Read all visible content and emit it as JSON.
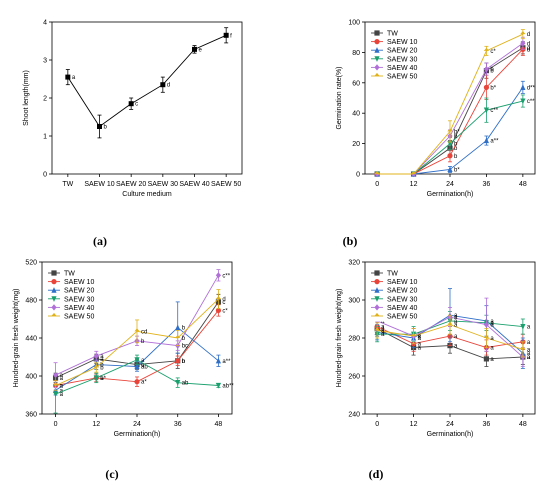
{
  "colors": {
    "TW": "#444444",
    "SAEW 10": "#e8443a",
    "SAEW 20": "#2f6fc8",
    "SAEW 30": "#1aa06e",
    "SAEW 40": "#b070d8",
    "SAEW 50": "#e0b21a",
    "axis": "#000000"
  },
  "chart_data": [
    {
      "panel": "(a)",
      "type": "line",
      "xlabel": "Culture medium",
      "ylabel": "Shoot length(mm)",
      "categories": [
        "TW",
        "SAEW 10",
        "SAEW 20",
        "SAEW 30",
        "SAEW 40",
        "SAEW 50"
      ],
      "ylim": [
        0,
        4
      ],
      "yticks": [
        0,
        1,
        2,
        3,
        4
      ],
      "series": [
        {
          "values": [
            2.55,
            1.25,
            1.85,
            2.35,
            3.28,
            3.65
          ],
          "errors": [
            0.2,
            0.3,
            0.15,
            0.2,
            0.1,
            0.2
          ],
          "letters": [
            "a",
            "b",
            "c",
            "d",
            "e",
            "f"
          ]
        }
      ]
    },
    {
      "panel": "(b)",
      "type": "line",
      "xlabel": "Germination(h)",
      "ylabel": "Germination rate(%)",
      "x": [
        0,
        12,
        24,
        36,
        48
      ],
      "xlim": [
        -4,
        52
      ],
      "ylim": [
        0,
        100
      ],
      "yticks": [
        0,
        20,
        40,
        60,
        80,
        100
      ],
      "legend": "top-left",
      "series": [
        {
          "name": "TW",
          "values": [
            0,
            0,
            17,
            68,
            83
          ],
          "errors": [
            0,
            0,
            5,
            5,
            4
          ],
          "letters": [
            "",
            "",
            "b",
            "b",
            "d"
          ]
        },
        {
          "name": "SAEW 10",
          "values": [
            0,
            0,
            12,
            57,
            82
          ],
          "errors": [
            0,
            0,
            4,
            8,
            4
          ],
          "letters": [
            "",
            "",
            "b",
            "b*",
            "d"
          ]
        },
        {
          "name": "SAEW 20",
          "values": [
            0,
            0,
            3,
            22,
            57
          ],
          "errors": [
            0,
            0,
            2,
            3,
            4
          ],
          "letters": [
            "",
            "",
            "b*",
            "a**",
            "d**"
          ]
        },
        {
          "name": "SAEW 30",
          "values": [
            0,
            0,
            20,
            42,
            48
          ],
          "errors": [
            0,
            0,
            4,
            8,
            4
          ],
          "letters": [
            "",
            "",
            "b",
            "c**",
            "c**"
          ]
        },
        {
          "name": "SAEW 40",
          "values": [
            0,
            0,
            25,
            69,
            86
          ],
          "errors": [
            0,
            0,
            4,
            4,
            4
          ],
          "letters": [
            "",
            "",
            "b",
            "b",
            "d"
          ]
        },
        {
          "name": "SAEW 50",
          "values": [
            0,
            0,
            28,
            81,
            92
          ],
          "errors": [
            0,
            0,
            7,
            3,
            3
          ],
          "letters": [
            "",
            "",
            "b*",
            "c*",
            "d"
          ]
        }
      ]
    },
    {
      "panel": "(c)",
      "type": "line",
      "xlabel": "Germination(h)",
      "ylabel": "Hundred-grain fresh weight(mg)",
      "x": [
        0,
        12,
        24,
        36,
        48
      ],
      "xlim": [
        -4,
        52
      ],
      "ylim": [
        360,
        520
      ],
      "yticks": [
        360,
        400,
        440,
        480,
        520
      ],
      "legend": "top-left",
      "series": [
        {
          "name": "TW",
          "values": [
            398,
            418,
            412,
            416,
            478
          ],
          "errors": [
            5,
            5,
            5,
            8,
            8
          ],
          "letters": [
            "a",
            "a",
            "b",
            "b",
            "c"
          ]
        },
        {
          "name": "SAEW 10",
          "values": [
            390,
            398,
            394,
            416,
            469
          ],
          "errors": [
            5,
            4,
            5,
            5,
            6
          ],
          "letters": [
            "a",
            "a*",
            "a*",
            "b",
            "c*"
          ]
        },
        {
          "name": "SAEW 20",
          "values": [
            385,
            412,
            410,
            451,
            416
          ],
          "errors": [
            5,
            5,
            5,
            27,
            6
          ],
          "letters": [
            "a",
            "b",
            "ab",
            "b",
            "a**"
          ]
        },
        {
          "name": "SAEW 30",
          "values": [
            381,
            398,
            417,
            393,
            390
          ],
          "errors": [
            20,
            5,
            5,
            5,
            2
          ],
          "letters": [
            "a",
            "b",
            "a",
            "ab",
            "ab**"
          ]
        },
        {
          "name": "SAEW 40",
          "values": [
            401,
            421,
            437,
            432,
            506
          ],
          "errors": [
            13,
            5,
            5,
            5,
            6
          ],
          "letters": [
            "a",
            "a",
            "b",
            "bc",
            "c**"
          ]
        },
        {
          "name": "SAEW 50",
          "values": [
            390,
            409,
            447,
            440,
            481
          ],
          "errors": [
            5,
            5,
            12,
            8,
            10
          ],
          "letters": [
            "a",
            "b",
            "cd",
            "b",
            "d"
          ]
        }
      ]
    },
    {
      "panel": "(d)",
      "type": "line",
      "xlabel": "Germination(h)",
      "ylabel": "Hundred-grain fresh weight(mg)",
      "x": [
        0,
        12,
        24,
        36,
        48
      ],
      "xlim": [
        -4,
        52
      ],
      "ylim": [
        240,
        320
      ],
      "yticks": [
        240,
        260,
        280,
        300,
        320
      ],
      "legend": "top-left",
      "series": [
        {
          "name": "TW",
          "values": [
            285,
            275,
            276,
            269,
            270
          ],
          "errors": [
            4,
            4,
            4,
            4,
            4
          ],
          "letters": [
            "a",
            "a",
            "a",
            "a",
            "a"
          ]
        },
        {
          "name": "SAEW 10",
          "values": [
            286,
            277,
            281,
            275,
            278
          ],
          "errors": [
            4,
            4,
            5,
            4,
            4
          ],
          "letters": [
            "a",
            "a",
            "a",
            "a",
            "a"
          ]
        },
        {
          "name": "SAEW 20",
          "values": [
            283,
            280,
            292,
            289,
            272
          ],
          "errors": [
            4,
            5,
            14,
            8,
            8
          ],
          "letters": [
            "a",
            "a",
            "a",
            "a",
            "a"
          ]
        },
        {
          "name": "SAEW 30",
          "values": [
            282,
            282,
            289,
            288,
            286
          ],
          "errors": [
            4,
            4,
            5,
            4,
            4
          ],
          "letters": [
            "a",
            "a",
            "a",
            "a",
            "a"
          ]
        },
        {
          "name": "SAEW 40",
          "values": [
            289,
            281,
            291,
            287,
            270
          ],
          "errors": [
            5,
            4,
            5,
            14,
            5
          ],
          "letters": [
            "a",
            "a",
            "a",
            "a",
            "a"
          ]
        },
        {
          "name": "SAEW 50",
          "values": [
            284,
            281,
            287,
            280,
            274
          ],
          "errors": [
            4,
            4,
            5,
            5,
            4
          ],
          "letters": [
            "a",
            "a",
            "a",
            "a",
            "a"
          ]
        }
      ]
    }
  ]
}
